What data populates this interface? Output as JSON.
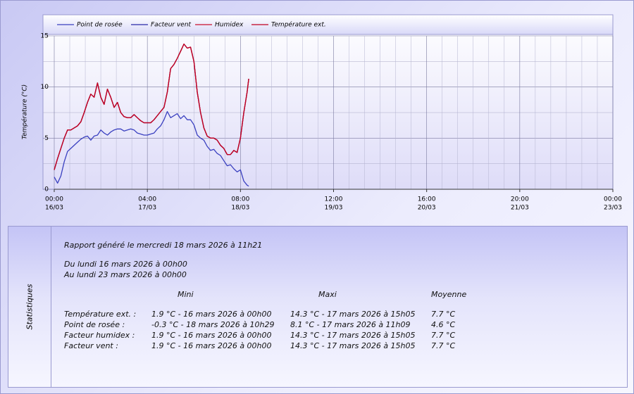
{
  "chart_data": {
    "type": "line",
    "y_label": "Température (°C)",
    "x": [
      "16/03 00:00",
      "16/03 01:00",
      "16/03 02:00",
      "16/03 03:00",
      "16/03 04:00",
      "16/03 05:00",
      "16/03 06:00",
      "16/03 07:00",
      "16/03 08:00",
      "16/03 09:00",
      "16/03 10:00",
      "16/03 11:00",
      "16/03 12:00",
      "16/03 13:00",
      "16/03 14:00",
      "16/03 15:00",
      "16/03 16:00",
      "16/03 17:00",
      "16/03 18:00",
      "16/03 19:00",
      "16/03 20:00",
      "16/03 21:00",
      "16/03 22:00",
      "16/03 23:00",
      "17/03 00:00",
      "17/03 01:00",
      "17/03 02:00",
      "17/03 03:00",
      "17/03 04:00",
      "17/03 05:00",
      "17/03 06:00",
      "17/03 07:00",
      "17/03 08:00",
      "17/03 09:00",
      "17/03 10:00",
      "17/03 11:00",
      "17/03 12:00",
      "17/03 13:00",
      "17/03 14:00",
      "17/03 15:00",
      "17/03 16:00",
      "17/03 17:00",
      "17/03 18:00",
      "17/03 19:00",
      "17/03 20:00",
      "17/03 21:00",
      "17/03 22:00",
      "17/03 23:00",
      "18/03 00:00",
      "18/03 01:00",
      "18/03 02:00",
      "18/03 03:00",
      "18/03 04:00",
      "18/03 05:00",
      "18/03 06:00",
      "18/03 07:00",
      "18/03 08:00",
      "18/03 09:00",
      "18/03 10:00",
      "18/03 10:30"
    ],
    "series": [
      {
        "name": "Point de rosée",
        "color": "#3a40c0",
        "values": [
          1.2,
          0.6,
          1.3,
          2.7,
          3.7,
          4.0,
          4.3,
          4.6,
          4.9,
          5.1,
          5.2,
          4.8,
          5.2,
          5.3,
          5.8,
          5.5,
          5.3,
          5.6,
          5.8,
          5.9,
          5.9,
          5.7,
          5.8,
          5.9,
          5.8,
          5.5,
          5.4,
          5.3,
          5.3,
          5.4,
          5.5,
          5.9,
          6.2,
          6.8,
          7.6,
          7.0,
          7.2,
          7.4,
          6.9,
          7.2,
          6.8,
          6.8,
          6.3,
          5.3,
          5.0,
          4.8,
          4.2,
          3.8,
          3.9,
          3.5,
          3.3,
          2.8,
          2.3,
          2.4,
          2.0,
          1.7,
          1.9,
          0.8,
          0.4,
          0.3
        ]
      },
      {
        "name": "Facteur vent",
        "color": "#2a2aa8",
        "values": [
          1.9,
          3.0,
          4.0,
          5.0,
          5.8,
          5.8,
          6.0,
          6.2,
          6.6,
          7.5,
          8.5,
          9.3,
          9.0,
          10.4,
          9.0,
          8.3,
          9.8,
          9.0,
          8.0,
          8.5,
          7.5,
          7.1,
          7.0,
          7.0,
          7.3,
          7.0,
          6.7,
          6.5,
          6.5,
          6.5,
          6.8,
          7.2,
          7.6,
          8.0,
          9.5,
          11.8,
          12.2,
          12.8,
          13.5,
          14.2,
          13.8,
          13.9,
          12.5,
          9.5,
          7.5,
          6.0,
          5.2,
          5.0,
          5.0,
          4.8,
          4.3,
          4.0,
          3.4,
          3.4,
          3.8,
          3.6,
          5.0,
          7.5,
          9.5,
          10.8
        ]
      },
      {
        "name": "Humidex",
        "color": "#c8102e",
        "values": [
          1.9,
          3.0,
          4.0,
          5.0,
          5.8,
          5.8,
          6.0,
          6.2,
          6.6,
          7.5,
          8.5,
          9.3,
          9.0,
          10.4,
          9.0,
          8.3,
          9.8,
          9.0,
          8.0,
          8.5,
          7.5,
          7.1,
          7.0,
          7.0,
          7.3,
          7.0,
          6.7,
          6.5,
          6.5,
          6.5,
          6.8,
          7.2,
          7.6,
          8.0,
          9.5,
          11.8,
          12.2,
          12.8,
          13.5,
          14.2,
          13.8,
          13.9,
          12.5,
          9.5,
          7.5,
          6.0,
          5.2,
          5.0,
          5.0,
          4.8,
          4.3,
          4.0,
          3.4,
          3.4,
          3.8,
          3.6,
          5.0,
          7.5,
          9.5,
          10.8
        ]
      },
      {
        "name": "Température ext.",
        "color": "#c00020",
        "values": [
          1.9,
          3.0,
          4.0,
          5.0,
          5.8,
          5.8,
          6.0,
          6.2,
          6.6,
          7.5,
          8.5,
          9.3,
          9.0,
          10.4,
          9.0,
          8.3,
          9.8,
          9.0,
          8.0,
          8.5,
          7.5,
          7.1,
          7.0,
          7.0,
          7.3,
          7.0,
          6.7,
          6.5,
          6.5,
          6.5,
          6.8,
          7.2,
          7.6,
          8.0,
          9.5,
          11.8,
          12.2,
          12.8,
          13.5,
          14.2,
          13.8,
          13.9,
          12.5,
          9.5,
          7.5,
          6.0,
          5.2,
          5.0,
          5.0,
          4.8,
          4.3,
          4.0,
          3.4,
          3.4,
          3.8,
          3.6,
          5.0,
          7.5,
          9.5,
          10.8
        ]
      }
    ],
    "xlim": [
      "16/03 00:00",
      "23/03 00:00"
    ],
    "xticks": [
      {
        "value": "16/03 00:00",
        "label": [
          "00:00",
          "16/03"
        ]
      },
      {
        "value": "17/03 04:00",
        "label": [
          "04:00",
          "17/03"
        ]
      },
      {
        "value": "18/03 08:00",
        "label": [
          "08:00",
          "18/03"
        ]
      },
      {
        "value": "19/03 12:00",
        "label": [
          "12:00",
          "19/03"
        ]
      },
      {
        "value": "20/03 16:00",
        "label": [
          "16:00",
          "20/03"
        ]
      },
      {
        "value": "21/03 20:00",
        "label": [
          "20:00",
          "21/03"
        ]
      },
      {
        "value": "23/03 00:00",
        "label": [
          "00:00",
          "23/03"
        ]
      }
    ],
    "ylim": [
      0,
      15
    ],
    "yticks": [
      0,
      5,
      10,
      15
    ],
    "grid": true,
    "legend": "top"
  },
  "stats": {
    "side_label": "Statistiques",
    "report": "Rapport généré le mercredi 18 mars 2026 à 11h21",
    "from": "Du lundi 16 mars 2026 à 00h00",
    "to": "Au lundi 23 mars 2026 à 00h00",
    "headers": [
      "Mini",
      "Maxi",
      "Moyenne"
    ],
    "rows": [
      [
        "Température ext. :",
        "1.9 °C - 16 mars 2026 à 00h00",
        "14.3 °C - 17 mars 2026 à 15h05",
        "7.7 °C"
      ],
      [
        "Point de rosée :",
        "-0.3 °C - 18 mars 2026 à 10h29",
        "8.1 °C - 17 mars 2026 à 11h09",
        "4.6 °C"
      ],
      [
        "Facteur humidex :",
        "1.9 °C - 16 mars 2026 à 00h00",
        "14.3 °C - 17 mars 2026 à 15h05",
        "7.7 °C"
      ],
      [
        "Facteur vent :",
        "1.9 °C - 16 mars 2026 à 00h00",
        "14.3 °C - 17 mars 2026 à 15h05",
        "7.7 °C"
      ]
    ]
  }
}
